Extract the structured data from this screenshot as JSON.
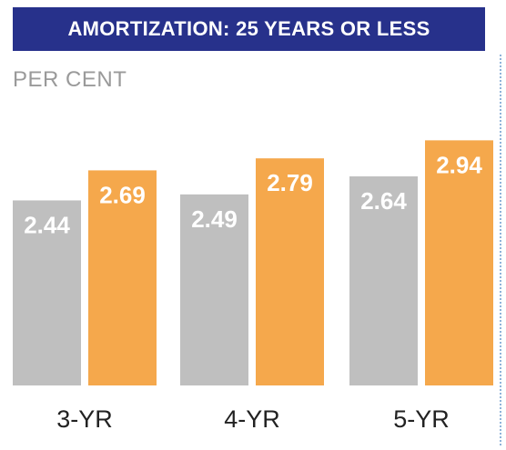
{
  "title": "AMORTIZATION: 25 YEARS OR LESS",
  "unit": "PER CENT",
  "colors": {
    "title_bg": "#27318b",
    "series_a": "#bfbfbf",
    "series_b": "#f5a84c"
  },
  "chart_data": {
    "type": "bar",
    "title": "AMORTIZATION: 25 YEARS OR LESS",
    "ylabel": "PER CENT",
    "xlabel": "",
    "categories": [
      "3-YR",
      "4-YR",
      "5-YR"
    ],
    "series": [
      {
        "values": [
          2.44,
          2.49,
          2.64
        ]
      },
      {
        "values": [
          2.69,
          2.79,
          2.94
        ]
      }
    ],
    "ylim": [
      0,
      3.2
    ],
    "grid": false,
    "legend": "none"
  }
}
